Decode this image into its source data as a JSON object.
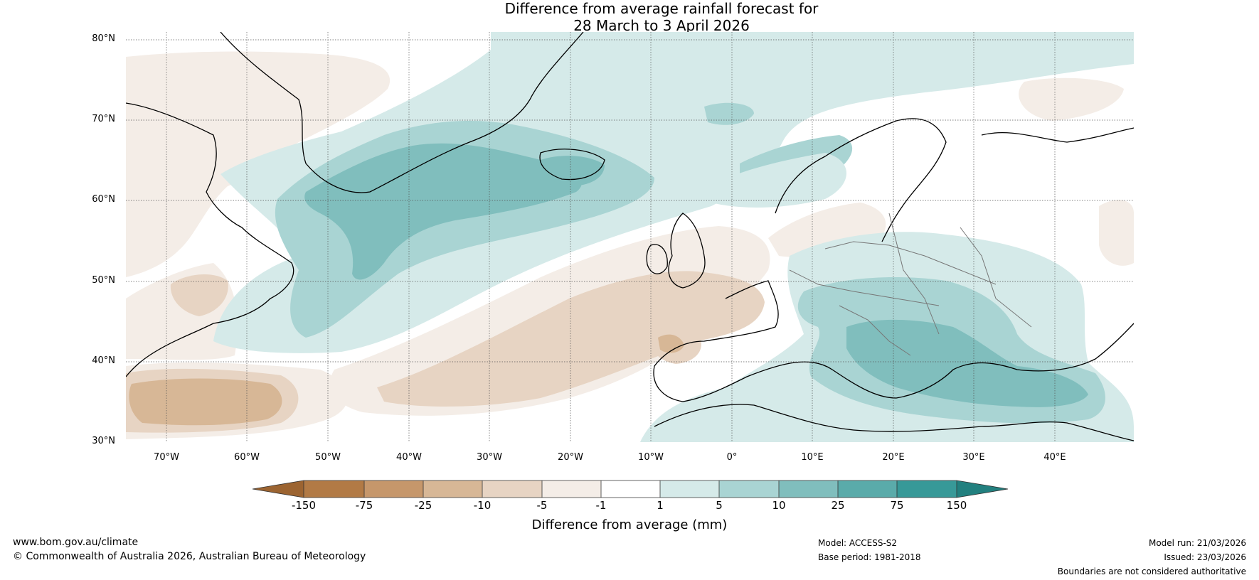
{
  "title_line1": "Difference from average rainfall forecast for",
  "title_line2": "28 March to 3 April 2026",
  "lat_labels": [
    "80°N",
    "70°N",
    "60°N",
    "50°N",
    "40°N",
    "30°N"
  ],
  "lon_labels": [
    "70°W",
    "60°W",
    "50°W",
    "40°W",
    "30°W",
    "20°W",
    "10°W",
    "0°",
    "10°E",
    "20°E",
    "30°E",
    "40°E"
  ],
  "colorbar": {
    "ticks": [
      "-150",
      "-75",
      "-25",
      "-10",
      "-5",
      "-1",
      "1",
      "5",
      "10",
      "25",
      "75",
      "150"
    ],
    "label": "Difference from average (mm)",
    "colors": [
      "#9c6431",
      "#b27a45",
      "#c6976b",
      "#d7b796",
      "#e7d4c3",
      "#f4ede7",
      "#ffffff",
      "#d5eae9",
      "#a9d4d3",
      "#80bebd",
      "#5aabaa",
      "#379998",
      "#22807f"
    ]
  },
  "footer": {
    "website": "www.bom.gov.au/climate",
    "copyright": "© Commonwealth of Australia 2026, Australian Bureau of Meteorology",
    "model": "Model: ACCESS-S2",
    "base_period": "Base period: 1981-2018",
    "model_run": "Model run: 21/03/2026",
    "issued": "Issued: 23/03/2026",
    "disclaimer": "Boundaries are not considered authoritative"
  }
}
